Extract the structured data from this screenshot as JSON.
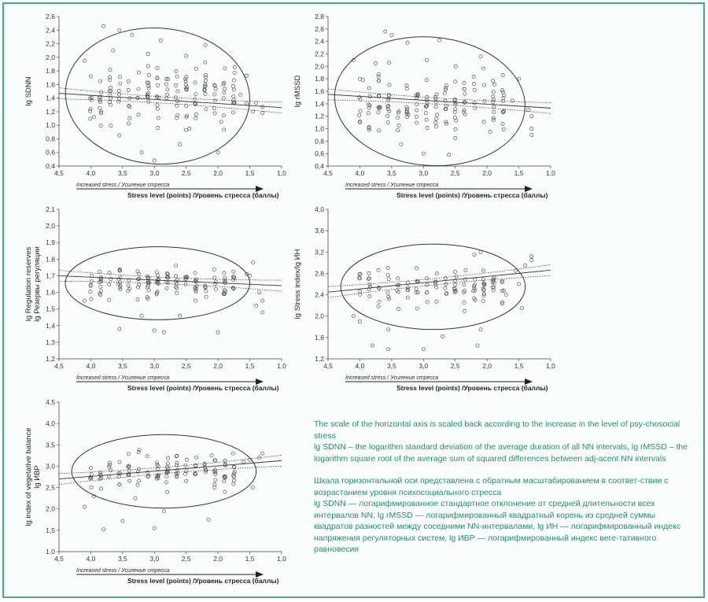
{
  "x_axis": {
    "ticks": [
      "4,5",
      "4,0",
      "3,5",
      "3,0",
      "2,5",
      "2,0",
      "1,5",
      "1,0"
    ],
    "sublabel": "Increased stress / Усиление стресса",
    "label": "Stress level (points) /Уровень стресса (баллы)"
  },
  "chart_data": [
    {
      "type": "scatter",
      "ylabel_lines": [
        "lg SDNN"
      ],
      "xlim": [
        4.5,
        1.0
      ],
      "ylim": [
        0.4,
        2.6
      ],
      "yticks": [
        "0,4",
        "0,6",
        "0,8",
        "1,0",
        "1,2",
        "1,4",
        "1,6",
        "1,8",
        "2,0",
        "2,2",
        "2,4",
        "2,6"
      ],
      "regression": {
        "y_at_4_5": 1.47,
        "y_at_1_0": 1.26
      },
      "ellipse": {
        "cx": 2.95,
        "cy": 1.43,
        "rx": 1.45,
        "ry": 1.0,
        "angle": 4
      },
      "seed": 11,
      "points": [
        [
          3.8,
          2.46
        ],
        [
          3.55,
          2.4
        ],
        [
          3.35,
          2.33
        ],
        [
          2.9,
          2.25
        ],
        [
          2.2,
          2.18
        ],
        [
          4.1,
          1.95
        ],
        [
          4.0,
          1.72
        ],
        [
          3.95,
          1.12
        ],
        [
          3.55,
          0.85
        ],
        [
          3.2,
          0.6
        ],
        [
          3.0,
          0.48
        ],
        [
          2.6,
          0.72
        ],
        [
          2.45,
          0.95
        ],
        [
          2.0,
          0.6
        ],
        [
          1.95,
          1.05
        ],
        [
          1.55,
          1.32
        ],
        [
          1.45,
          1.2
        ],
        [
          1.4,
          1.33
        ],
        [
          1.3,
          1.27
        ],
        [
          1.3,
          1.18
        ],
        [
          1.55,
          1.73
        ],
        [
          1.65,
          1.45
        ],
        [
          3.1,
          2.05
        ],
        [
          2.5,
          2.02
        ],
        [
          3.65,
          2.1
        ]
      ]
    },
    {
      "type": "scatter",
      "ylabel_lines": [
        "lg rMSSD"
      ],
      "xlim": [
        4.5,
        1.0
      ],
      "ylim": [
        0.4,
        2.8
      ],
      "yticks": [
        "0,4",
        "0,6",
        "0,8",
        "1,0",
        "1,2",
        "1,4",
        "1,6",
        "1,8",
        "2,0",
        "2,2",
        "2,4",
        "2,6",
        "2,8"
      ],
      "regression": {
        "y_at_4_5": 1.55,
        "y_at_1_0": 1.33
      },
      "ellipse": {
        "cx": 2.9,
        "cy": 1.44,
        "rx": 1.5,
        "ry": 1.03,
        "angle": 5
      },
      "seed": 23,
      "points": [
        [
          3.6,
          2.56
        ],
        [
          3.5,
          2.5
        ],
        [
          3.25,
          2.38
        ],
        [
          2.75,
          2.42
        ],
        [
          2.1,
          2.16
        ],
        [
          4.1,
          2.1
        ],
        [
          3.95,
          1.78
        ],
        [
          4.0,
          1.1
        ],
        [
          3.35,
          0.75
        ],
        [
          3.0,
          0.6
        ],
        [
          2.6,
          0.58
        ],
        [
          2.5,
          0.85
        ],
        [
          1.95,
          0.95
        ],
        [
          1.6,
          1.45
        ],
        [
          1.5,
          1.8
        ],
        [
          1.35,
          1.3
        ],
        [
          1.3,
          1.2
        ],
        [
          1.3,
          1.0
        ],
        [
          1.3,
          0.9
        ],
        [
          2.95,
          2.1
        ],
        [
          3.75,
          2.05
        ]
      ]
    },
    {
      "type": "scatter",
      "ylabel_lines": [
        "lg Regulation reserves",
        "lg Резервы регуляции"
      ],
      "xlim": [
        4.5,
        1.0
      ],
      "ylim": [
        1.2,
        2.1
      ],
      "yticks": [
        "1,2",
        "1,3",
        "1,4",
        "1,5",
        "1,6",
        "1,7",
        "1,8",
        "1,9",
        "2,0",
        "2,1"
      ],
      "regression": {
        "y_at_4_5": 1.7,
        "y_at_1_0": 1.64
      },
      "ellipse": {
        "cx": 2.95,
        "cy": 1.655,
        "rx": 1.45,
        "ry": 0.22,
        "angle": 0
      },
      "seed": 37,
      "points": [
        [
          3.55,
          1.38
        ],
        [
          3.0,
          1.37
        ],
        [
          2.85,
          1.36
        ],
        [
          2.0,
          1.36
        ],
        [
          1.55,
          1.71
        ],
        [
          1.5,
          1.7
        ],
        [
          1.45,
          1.78
        ],
        [
          1.35,
          1.6
        ],
        [
          1.3,
          1.55
        ],
        [
          1.3,
          1.48
        ],
        [
          1.4,
          1.52
        ],
        [
          4.1,
          1.55
        ],
        [
          3.2,
          1.46
        ],
        [
          2.6,
          1.46
        ]
      ]
    },
    {
      "type": "scatter",
      "ylabel_lines": [
        "lg Stress index/lg ИН"
      ],
      "xlim": [
        4.5,
        1.0
      ],
      "ylim": [
        1.2,
        4.0
      ],
      "yticks": [
        "1,2",
        "1,6",
        "2,0",
        "2,4",
        "2,8",
        "3,2",
        "3,6",
        "4,0"
      ],
      "regression": {
        "y_at_4_5": 2.45,
        "y_at_1_0": 2.86
      },
      "ellipse": {
        "cx": 2.85,
        "cy": 2.55,
        "rx": 1.45,
        "ry": 0.8,
        "angle": 0
      },
      "seed": 41,
      "points": [
        [
          3.8,
          1.45
        ],
        [
          3.55,
          1.38
        ],
        [
          3.0,
          1.38
        ],
        [
          2.7,
          1.62
        ],
        [
          2.15,
          1.45
        ],
        [
          2.1,
          1.75
        ],
        [
          1.5,
          2.6
        ],
        [
          1.45,
          2.15
        ],
        [
          1.4,
          2.95
        ],
        [
          1.3,
          3.05
        ],
        [
          1.3,
          3.12
        ],
        [
          1.55,
          2.85
        ],
        [
          1.7,
          2.4
        ],
        [
          2.1,
          3.2
        ],
        [
          2.2,
          3.15
        ],
        [
          4.1,
          2.0
        ],
        [
          4.0,
          1.9
        ],
        [
          3.55,
          1.75
        ]
      ]
    },
    {
      "type": "scatter",
      "ylabel_lines": [
        "lg index of vegetative balance",
        "lg ИВР"
      ],
      "xlim": [
        4.5,
        1.0
      ],
      "ylim": [
        1.0,
        4.5
      ],
      "yticks": [
        "1,0",
        "1,5",
        "2,0",
        "2,5",
        "3,0",
        "3,5",
        "4,0",
        "4,5"
      ],
      "regression": {
        "y_at_4_5": 2.7,
        "y_at_1_0": 3.13
      },
      "ellipse": {
        "cx": 2.85,
        "cy": 2.88,
        "rx": 1.45,
        "ry": 0.86,
        "angle": 0
      },
      "seed": 53,
      "points": [
        [
          3.8,
          1.52
        ],
        [
          3.5,
          1.72
        ],
        [
          3.0,
          1.55
        ],
        [
          2.85,
          1.95
        ],
        [
          2.15,
          1.75
        ],
        [
          4.1,
          2.05
        ],
        [
          3.95,
          2.3
        ],
        [
          3.3,
          2.25
        ],
        [
          1.35,
          3.2
        ],
        [
          1.3,
          3.3
        ],
        [
          1.45,
          2.5
        ],
        [
          1.6,
          3.1
        ],
        [
          1.5,
          3.15
        ],
        [
          2.1,
          3.25
        ]
      ]
    }
  ],
  "notes": {
    "en_1": "The scale of the horizontal axis is scaled back according to the increase in the level of psy-chosocial stress",
    "en_2": "lg SDNN – the logarithm standard deviation of the average duration of all NN intervals, lg rMSSD – the logarithm square root of the average sum of squared differences between adj-acent NN intervals",
    "ru_1": "Шкала горизонтальной оси представлена с обратным масштабированием в соответ-ствии с возрастанием уровня психосоциального стресса",
    "ru_2": "lg SDNN — логарифмированное стандартное отклонение от средней длительности всех интервалов NN, lg rMSSD — логарифмированный квадратный корень из средней суммы квадратов разностей между соседними NN-интервалами, lg ИН — логарифмированный индекс напряжения регуляторных систем, lg ИВР — логарифмированный индекс веге-тативного равновесия"
  },
  "colors": {
    "frame": "#3fae86",
    "note_text": "#1f8f74",
    "marks": "#555555"
  }
}
